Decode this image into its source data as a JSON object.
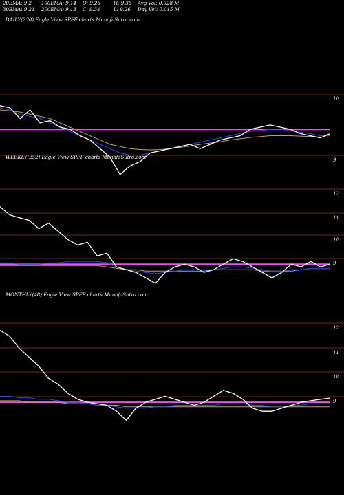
{
  "header": {
    "stats": [
      [
        "20EMA: 9.2",
        "100EMA: 9.14",
        "O: 9.26",
        "H: 9.35",
        "Avg Vol: 0.028 M"
      ],
      [
        "30EMA: 9.21",
        "200EMA: 9.13",
        "C: 9.34",
        "L: 9.26",
        "Day Vol: 0.015 M"
      ]
    ]
  },
  "colors": {
    "background": "#000000",
    "price": "#ffffff",
    "ema_fast": "#1e4bff",
    "ema_slow": "#7a88ff",
    "ema_long": "#c8a050",
    "resistance": "#ff44ff",
    "grid": "#8b3a1a"
  },
  "chart_data": [
    {
      "type": "line",
      "title": "DAILY(230) Eagle   View  SPFF charts MunafaSutra.com",
      "y_ticks": [
        "10",
        "9"
      ],
      "grid": true,
      "series": [
        {
          "values": [
            10.0,
            9.95,
            9.7,
            9.9,
            9.6,
            9.65,
            9.5,
            9.45,
            9.3,
            9.2,
            9.0,
            8.8,
            8.4,
            8.6,
            8.7,
            8.9,
            8.95,
            9.0,
            9.05,
            9.1,
            9.0,
            9.1,
            9.2,
            9.25,
            9.3,
            9.45,
            9.5,
            9.55,
            9.5,
            9.45,
            9.35,
            9.3,
            9.25,
            9.35
          ]
        },
        {
          "values": [
            9.95,
            9.9,
            9.8,
            9.75,
            9.7,
            9.6,
            9.5,
            9.4,
            9.3,
            9.2,
            9.1,
            9.0,
            8.9,
            8.85,
            8.85,
            8.9,
            8.95,
            9.0,
            9.05,
            9.1,
            9.15,
            9.2,
            9.25,
            9.3,
            9.35,
            9.4,
            9.42,
            9.45,
            9.45,
            9.42,
            9.38,
            9.35,
            9.3,
            9.3
          ]
        },
        {
          "values": [
            9.9,
            9.88,
            9.85,
            9.8,
            9.75,
            9.7,
            9.6,
            9.5,
            9.4,
            9.3,
            9.2,
            9.1,
            9.05,
            9.0,
            8.98,
            8.97,
            8.98,
            9.0,
            9.03,
            9.06,
            9.1,
            9.13,
            9.16,
            9.2,
            9.23,
            9.26,
            9.28,
            9.3,
            9.3,
            9.3,
            9.29,
            9.28,
            9.27,
            9.27
          ]
        }
      ],
      "resistance_line": 9.45
    },
    {
      "type": "line",
      "title": "WEEKLY(252) Eagle   View  SPFF charts MunafaSutra.com",
      "y_ticks": [
        "12",
        "11",
        "10",
        "9"
      ],
      "grid": true,
      "series": [
        {
          "values": [
            11.4,
            11.1,
            11.0,
            10.9,
            10.6,
            10.8,
            10.5,
            10.2,
            10.0,
            10.1,
            9.6,
            9.7,
            9.2,
            9.1,
            9.0,
            8.8,
            8.6,
            9.0,
            9.2,
            9.3,
            9.2,
            9.0,
            9.1,
            9.3,
            9.5,
            9.4,
            9.2,
            9.0,
            8.8,
            9.0,
            9.3,
            9.2,
            9.4,
            9.2,
            9.3
          ]
        },
        {
          "values": [
            9.35,
            9.35,
            9.3,
            9.3,
            9.3,
            9.35,
            9.35,
            9.4,
            9.4,
            9.4,
            9.4,
            9.35,
            9.2,
            9.1,
            9.05,
            9.0,
            8.95,
            9.0,
            9.05,
            9.1,
            9.1,
            9.1,
            9.1,
            9.15,
            9.2,
            9.2,
            9.15,
            9.1,
            9.05,
            9.05,
            9.1,
            9.1,
            9.15,
            9.15,
            9.15
          ]
        },
        {
          "values": [
            9.25,
            9.25,
            9.25,
            9.25,
            9.25,
            9.25,
            9.25,
            9.25,
            9.25,
            9.25,
            9.25,
            9.2,
            9.15,
            9.1,
            9.1,
            9.05,
            9.05,
            9.05,
            9.05,
            9.05,
            9.05,
            9.05,
            9.1,
            9.1,
            9.1,
            9.1,
            9.1,
            9.05,
            9.05,
            9.05,
            9.05,
            9.1,
            9.1,
            9.1,
            9.1
          ]
        }
      ],
      "resistance_line": 9.3
    },
    {
      "type": "line",
      "title": "MONTHLY(48) Eagle   View  SPFF charts MunafaSutra.com",
      "y_ticks": [
        "12",
        "11",
        "10",
        "9"
      ],
      "grid": true,
      "series": [
        {
          "values": [
            11.6,
            11.4,
            11.0,
            10.7,
            10.4,
            10.0,
            9.8,
            9.5,
            9.3,
            9.2,
            9.15,
            9.1,
            8.9,
            8.6,
            9.0,
            9.2,
            9.3,
            9.4,
            9.3,
            9.2,
            9.1,
            9.2,
            9.4,
            9.6,
            9.5,
            9.3,
            9.0,
            8.9,
            8.9,
            9.0,
            9.1,
            9.2,
            9.25,
            9.3,
            9.34
          ]
        },
        {
          "values": [
            9.4,
            9.4,
            9.35,
            9.35,
            9.3,
            9.3,
            9.25,
            9.2,
            9.2,
            9.15,
            9.1,
            9.1,
            9.05,
            9.0,
            9.0,
            9.0,
            9.05,
            9.05,
            9.1,
            9.1,
            9.1,
            9.1,
            9.1,
            9.15,
            9.15,
            9.15,
            9.1,
            9.1,
            9.05,
            9.05,
            9.1,
            9.1,
            9.15,
            9.15,
            9.15
          ]
        },
        {
          "values": [
            9.25,
            9.25,
            9.25,
            9.2,
            9.2,
            9.2,
            9.2,
            9.15,
            9.15,
            9.15,
            9.1,
            9.1,
            9.1,
            9.05,
            9.05,
            9.05,
            9.05,
            9.05,
            9.05,
            9.05,
            9.05,
            9.05,
            9.05,
            9.05,
            9.05,
            9.05,
            9.05,
            9.05,
            9.05,
            9.05,
            9.05,
            9.05,
            9.05,
            9.05,
            9.05
          ]
        }
      ],
      "resistance_line": 9.2
    }
  ]
}
